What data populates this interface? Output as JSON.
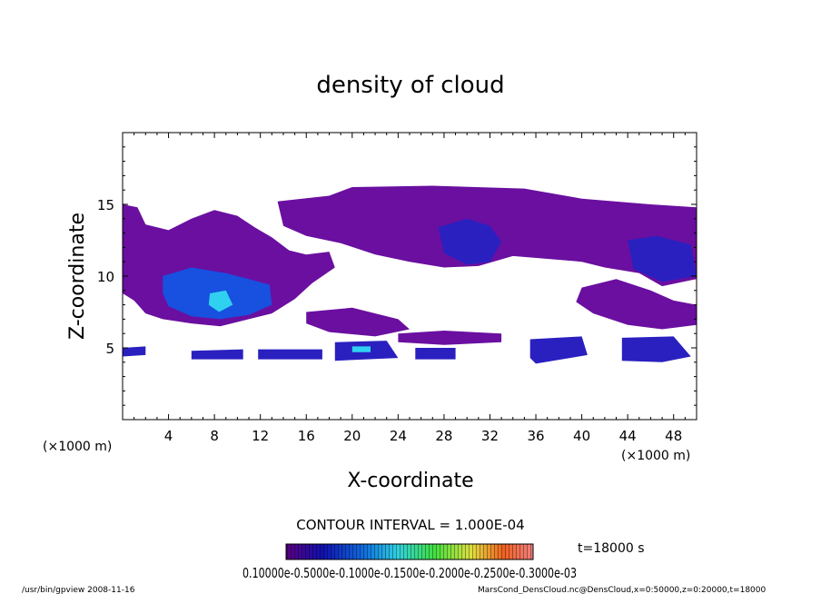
{
  "chart_data": {
    "type": "heatmap",
    "title": "density of cloud",
    "xlabel": "X-coordinate",
    "ylabel": "Z-coordinate",
    "x_unit": "(×1000 m)",
    "z_unit": "(×1000 m)",
    "xlim": [
      0,
      50
    ],
    "ylim": [
      0,
      20
    ],
    "x_ticks": [
      4,
      8,
      12,
      16,
      20,
      24,
      28,
      32,
      36,
      40,
      44,
      48
    ],
    "y_ticks": [
      5,
      10,
      15
    ],
    "contour_interval": "CONTOUR INTERVAL = 1.000E-04",
    "time_label": "t=18000 s",
    "colorbar_labels": "0.10000e-0.5000e-0.1000e-0.1500e-0.2000e-0.2500e-0.3000e-03",
    "colorbar_ticks": [
      "0.10000e-05",
      "0.5000e-04",
      "0.1000e-03",
      "0.1500e-03",
      "0.2000e-03",
      "0.2500e-03",
      "0.3000e-03"
    ],
    "grid": false,
    "colors": {
      "low": "#6a0fa0",
      "mid": "#2a20c0",
      "dense": "#1850e0",
      "cyan": "#30d0f0",
      "frame": "#000000"
    },
    "regions": [
      {
        "name": "upper-cloud-band",
        "x": [
          14,
          50
        ],
        "z": [
          11,
          16
        ]
      },
      {
        "name": "left-cloud-mass",
        "x": [
          0,
          16
        ],
        "z": [
          6.5,
          15
        ]
      },
      {
        "name": "dense-core-left",
        "x": [
          4,
          13
        ],
        "z": [
          7,
          11
        ]
      },
      {
        "name": "dense-core-center",
        "x": [
          27,
          33
        ],
        "z": [
          10.5,
          14
        ]
      },
      {
        "name": "dense-core-right",
        "x": [
          44,
          50
        ],
        "z": [
          9.5,
          13
        ]
      },
      {
        "name": "low-cloud-layer",
        "x": [
          0,
          50
        ],
        "z": [
          4,
          6
        ]
      }
    ]
  },
  "footer": {
    "left": "/usr/bin/gpview   2008-11-16",
    "right": "MarsCond_DensCloud.nc@DensCloud,x=0:50000,z=0:20000,t=18000"
  }
}
